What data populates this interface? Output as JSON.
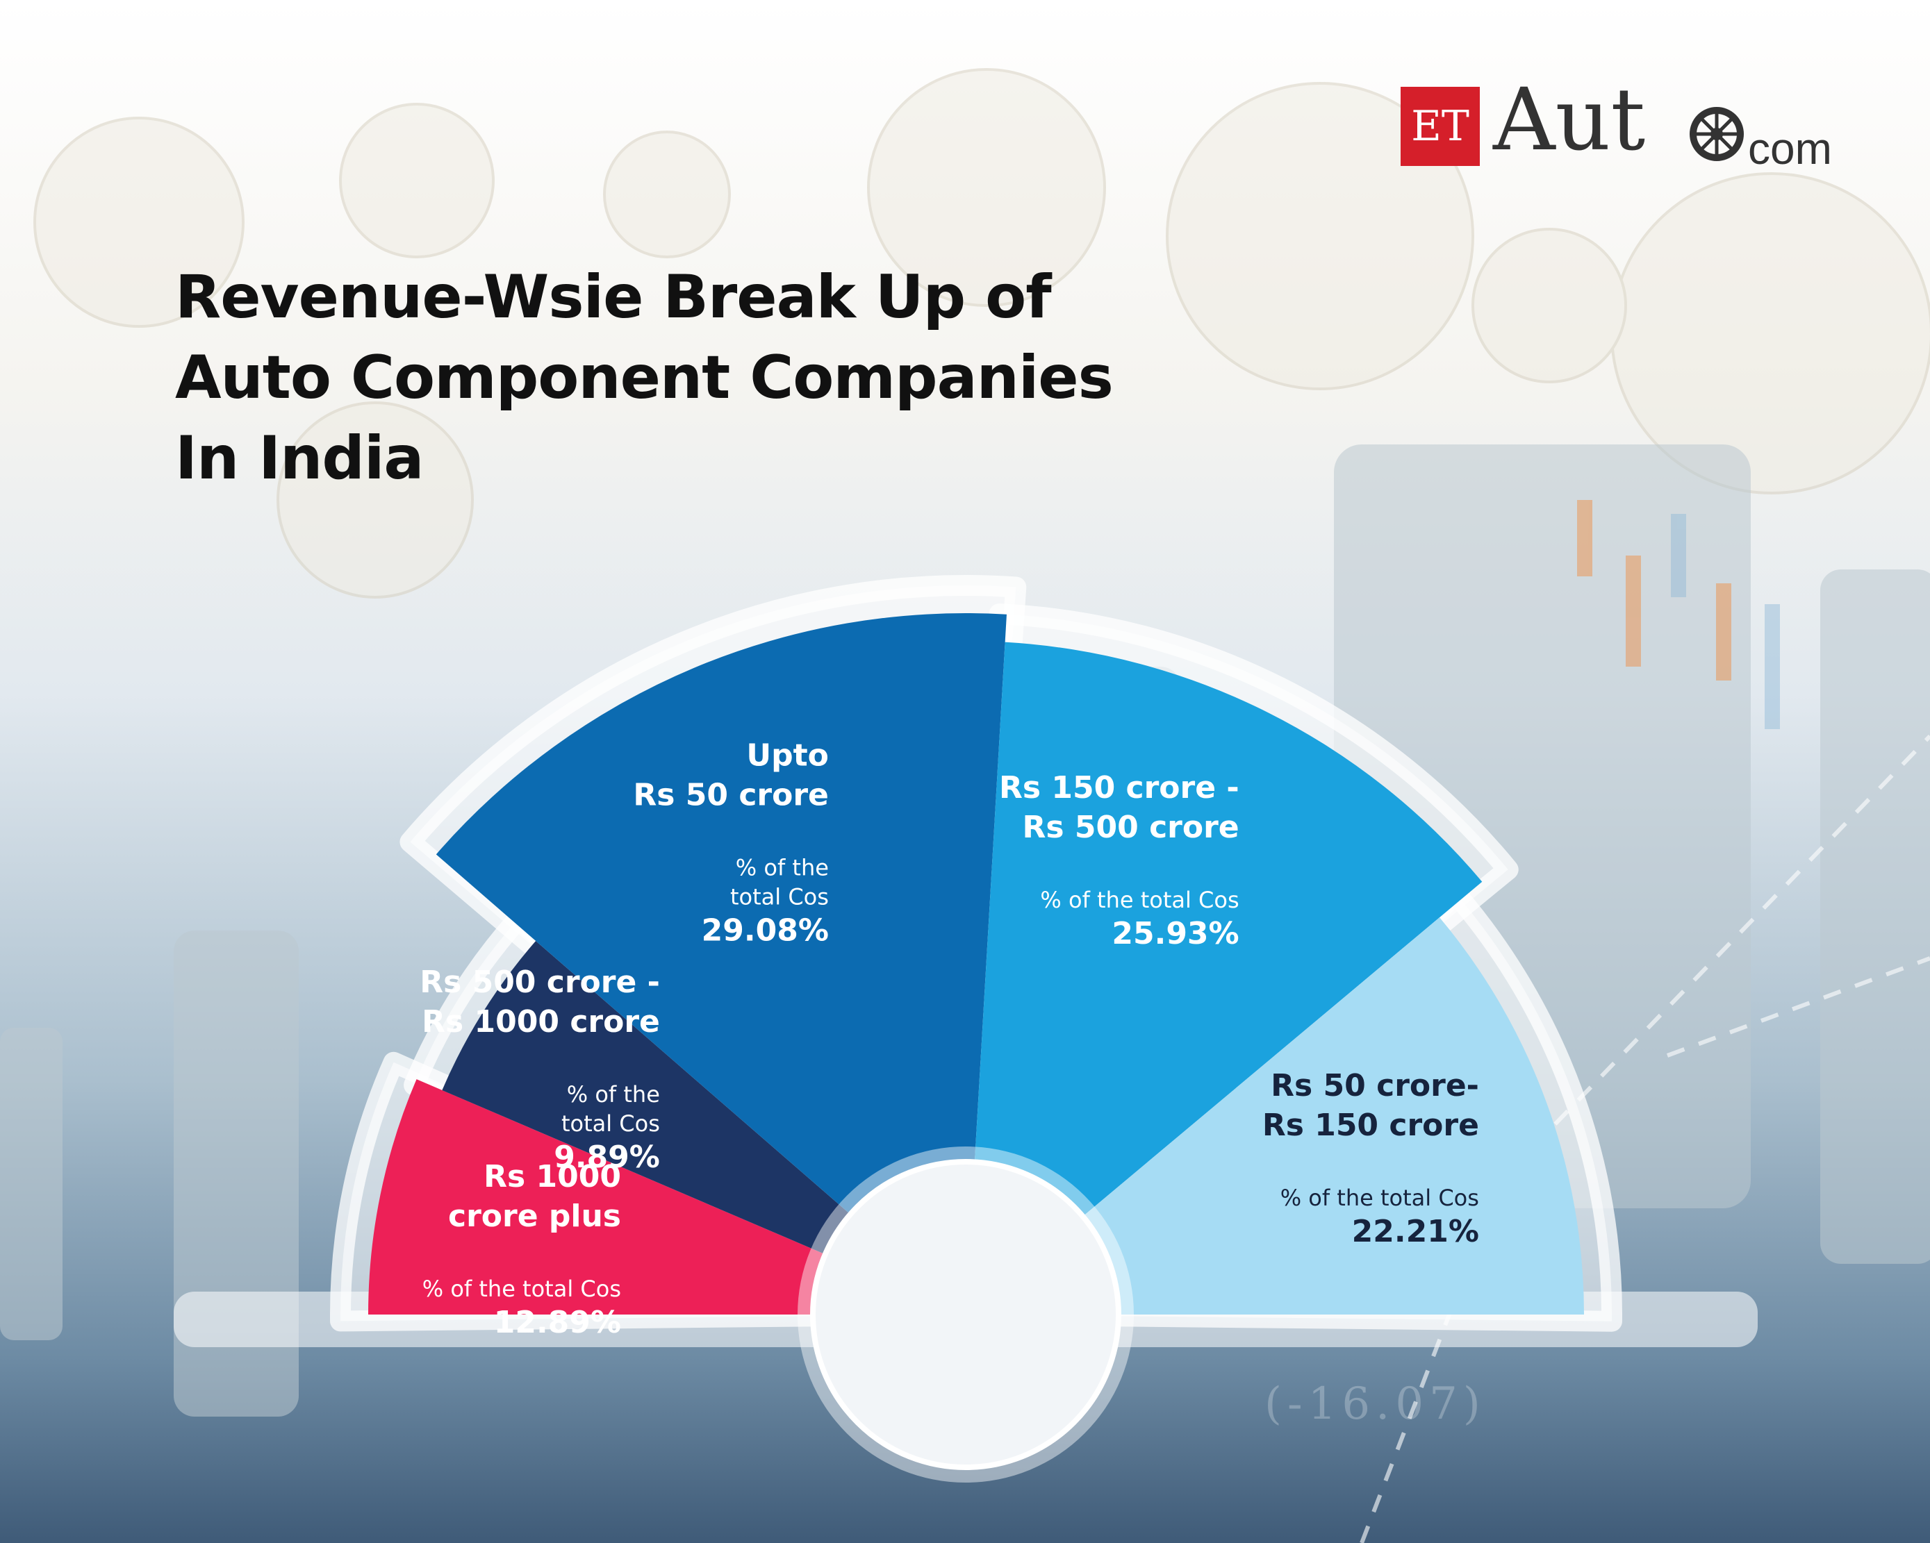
{
  "header": {
    "title_lines": [
      "Revenue-Wsie Break Up of",
      "Auto Component Companies",
      "In India"
    ]
  },
  "logo": {
    "et": "ET",
    "auto": "Aut",
    "com": "com",
    "red": "#d51f2a"
  },
  "chart_data": {
    "type": "pie",
    "layout": "half-rose",
    "slices": [
      {
        "label_lines": [
          "Rs 1000",
          "crore plus"
        ],
        "caption_lines": [
          "% of the total Cos"
        ],
        "value": 12.89,
        "value_text": "12.89%",
        "color": "#ed2057"
      },
      {
        "label_lines": [
          "Rs 500 crore -",
          "Rs 1000 crore"
        ],
        "caption_lines": [
          "% of the",
          "total Cos"
        ],
        "value": 9.89,
        "value_text": "9.89%",
        "color": "#1d3565"
      },
      {
        "label_lines": [
          "Upto",
          "Rs 50 crore"
        ],
        "caption_lines": [
          "% of the",
          "total Cos"
        ],
        "value": 29.08,
        "value_text": "29.08%",
        "color": "#0c6bb1"
      },
      {
        "label_lines": [
          "Rs 150 crore -",
          "Rs 500 crore"
        ],
        "caption_lines": [
          "% of the total Cos"
        ],
        "value": 25.93,
        "value_text": "25.93%",
        "color": "#1ba2de"
      },
      {
        "label_lines": [
          "Rs 50 crore-",
          "Rs 150 crore"
        ],
        "caption_lines": [
          "% of the total Cos"
        ],
        "value": 22.21,
        "value_text": "22.21%",
        "color": "#a6dcf4"
      }
    ],
    "value_unit": "% of the total Cos",
    "legend": "none"
  },
  "colors": {
    "title": "#111111",
    "label_on_dark": "#ffffff",
    "label_on_light": "#16233d"
  }
}
